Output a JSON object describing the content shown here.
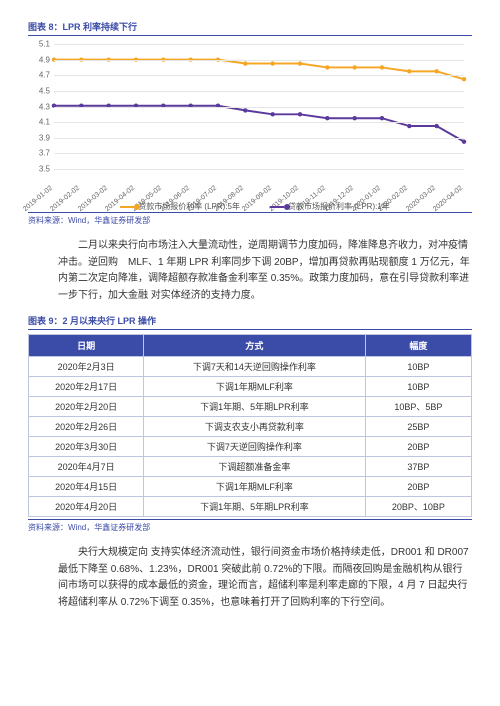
{
  "fig8": {
    "title": "图表 8：LPR 利率持续下行",
    "source": "资料来源：Wind，华鑫证券研发部",
    "chart": {
      "type": "line",
      "ylim": [
        3.5,
        5.1
      ],
      "ytick_step": 0.2,
      "yticks": [
        3.5,
        3.7,
        3.9,
        4.1,
        4.3,
        4.5,
        4.7,
        4.9,
        5.1
      ],
      "grid_color": "#e6e6e6",
      "background_color": "#ffffff",
      "xlabels": [
        "2019-01-02",
        "2019-02-02",
        "2019-03-02",
        "2019-04-02",
        "2019-05-02",
        "2019-06-02",
        "2019-07-02",
        "2019-08-02",
        "2019-09-02",
        "2019-10-02",
        "2019-11-02",
        "2019-12-02",
        "2020-01-02",
        "2020-02-02",
        "2020-03-02",
        "2020-04-02"
      ],
      "series": [
        {
          "name": "贷款市场报价利率 (LPR):5年",
          "color": "#f5a623",
          "marker": "circle",
          "line_width": 2,
          "values": [
            4.9,
            4.9,
            4.9,
            4.9,
            4.9,
            4.9,
            4.9,
            4.85,
            4.85,
            4.85,
            4.8,
            4.8,
            4.8,
            4.75,
            4.75,
            4.65
          ]
        },
        {
          "name": "贷款市场报价利率 (LPR):1年",
          "color": "#5b3a9b",
          "marker": "circle",
          "line_width": 2,
          "values": [
            4.31,
            4.31,
            4.31,
            4.31,
            4.31,
            4.31,
            4.31,
            4.25,
            4.2,
            4.2,
            4.15,
            4.15,
            4.15,
            4.05,
            4.05,
            3.85
          ]
        }
      ]
    }
  },
  "paragraph1": "二月以来央行向市场注入大量流动性，逆周期调节力度加码，降准降息齐收力，对冲疫情冲击。逆回购　MLF、1 年期 LPR 利率同步下调 20BP，增加再贷款再贴现额度 1 万亿元，年内第二次定向降准，调降超额存款准备金利率至 0.35%。政策力度加码，意在引导贷款利率进一步下行，加大金融 对实体经济的支持力度。",
  "fig9": {
    "title": "图表 9：2 月以来央行 LPR 操作",
    "source": "资料来源：Wind，华鑫证券研发部",
    "columns": [
      "日期",
      "方式",
      "幅度"
    ],
    "rows": [
      [
        "2020年2月3日",
        "下调7天和14天逆回购操作利率",
        "10BP"
      ],
      [
        "2020年2月17日",
        "下调1年期MLF利率",
        "10BP"
      ],
      [
        "2020年2月20日",
        "下调1年期、5年期LPR利率",
        "10BP、5BP"
      ],
      [
        "2020年2月26日",
        "下调支农支小再贷款利率",
        "25BP"
      ],
      [
        "2020年3月30日",
        "下调7天逆回购操作利率",
        "20BP"
      ],
      [
        "2020年4月7日",
        "下调超额准备金率",
        "37BP"
      ],
      [
        "2020年4月15日",
        "下调1年期MLF利率",
        "20BP"
      ],
      [
        "2020年4月20日",
        "下调1年期、5年期LPR利率",
        "20BP、10BP"
      ]
    ],
    "header_bg": "#3b4ba8",
    "border_color": "#bfc4e0"
  },
  "paragraph2": "央行大规模定向 支持实体经济流动性，银行间资金市场价格持续走低，DR001 和 DR007 最低下降至 0.68%、1.23%，DR001 突破此前 0.72%的下限。而隔夜回购是金融机构从银行间市场可以获得的成本最低的资金，理论而言，超储利率是利率走廊的下限，4 月 7 日起央行将超储利率从 0.72%下调至 0.35%，也意味着打开了回购利率的下行空间。"
}
